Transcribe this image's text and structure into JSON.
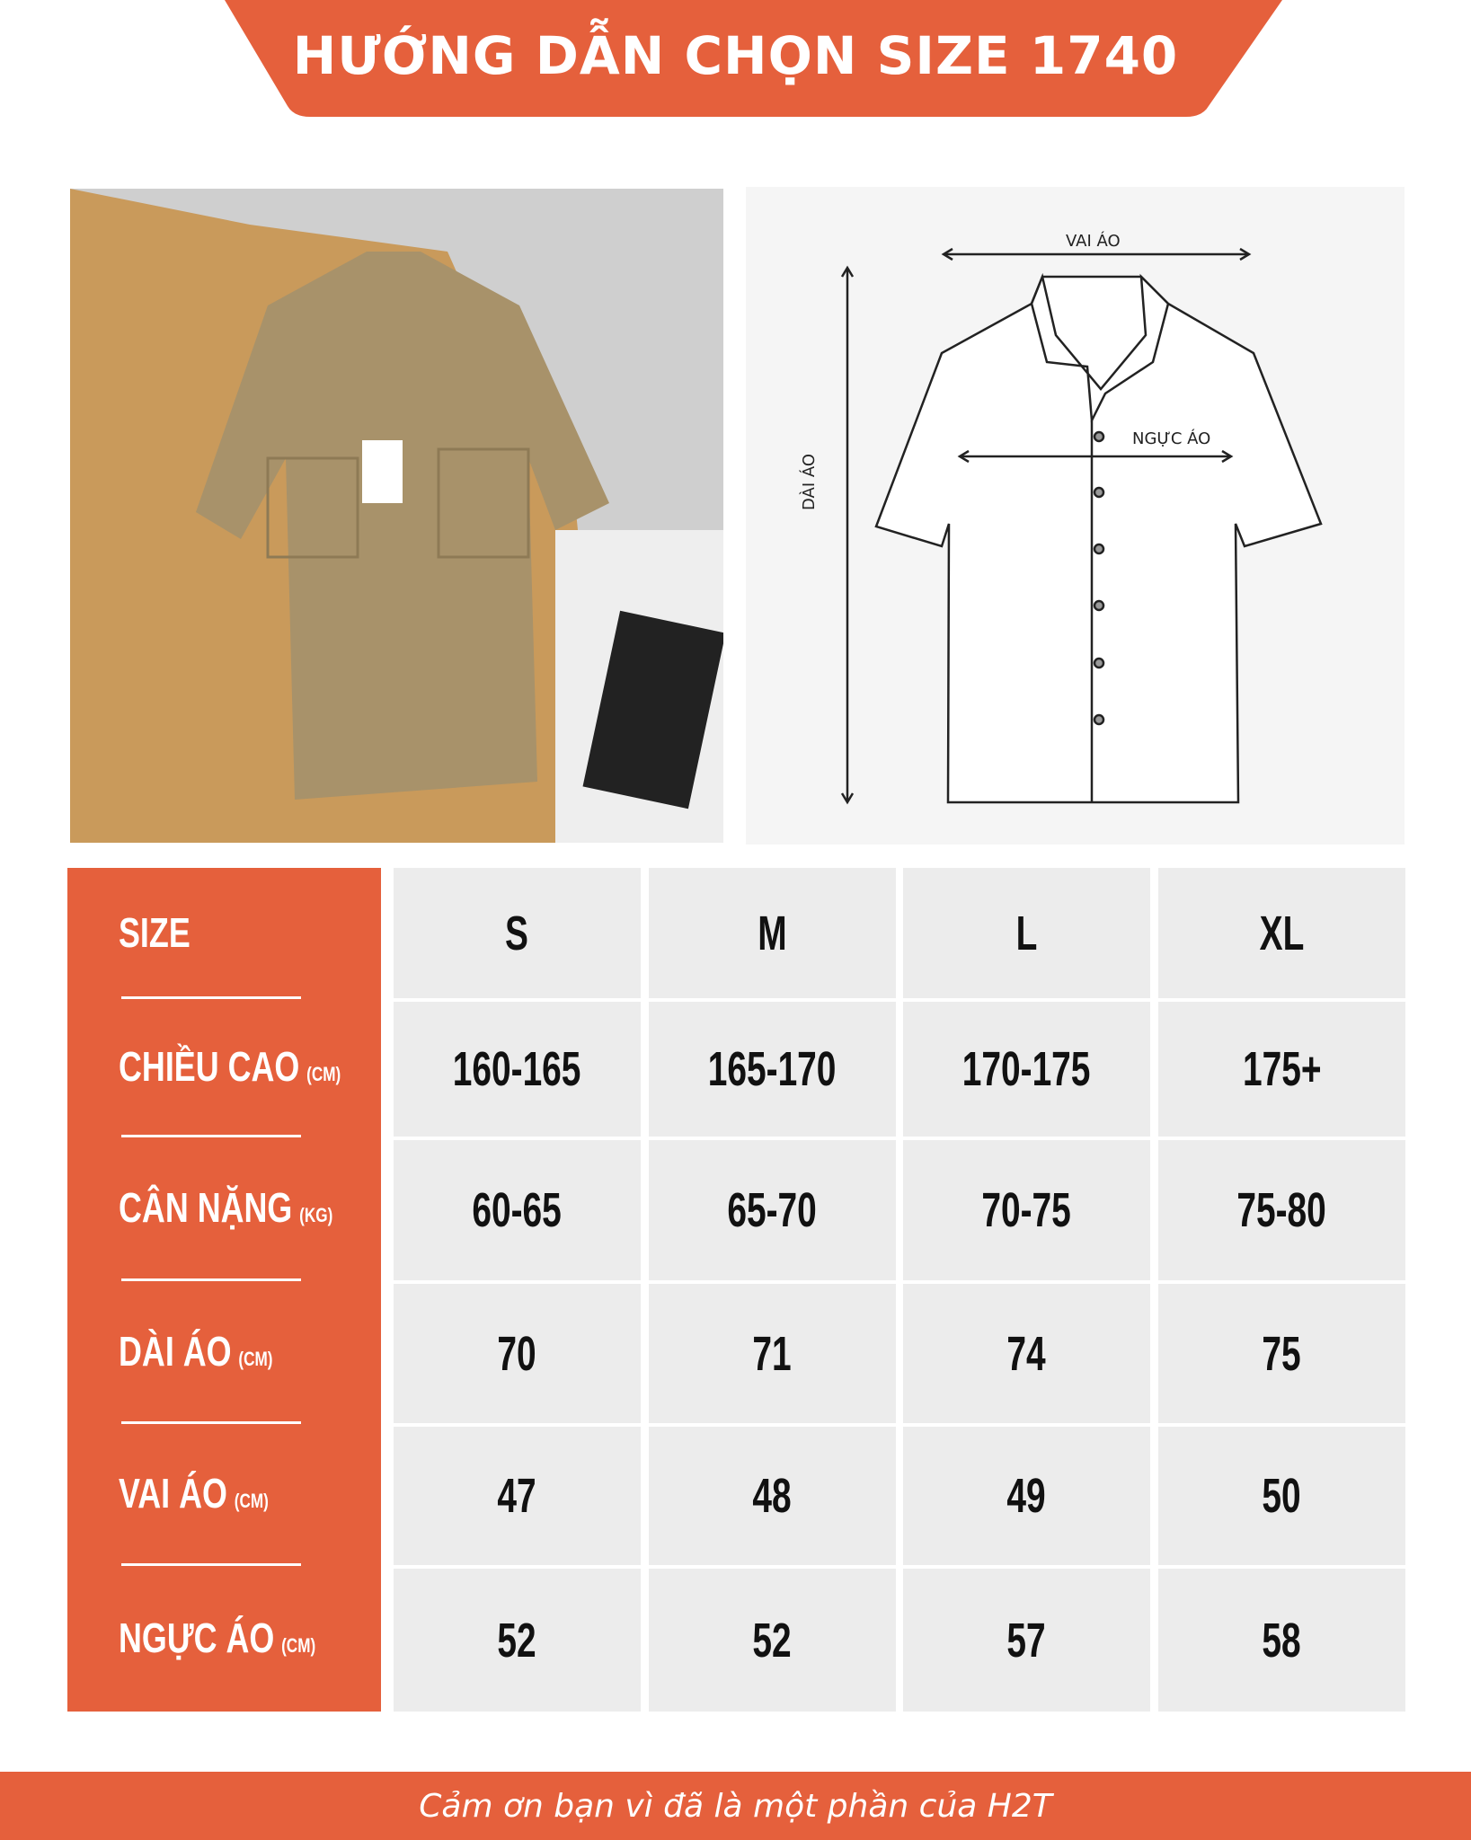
{
  "header": {
    "title": "HƯỚNG DẪN CHỌN SIZE 1740"
  },
  "colors": {
    "accent": "#e5603c",
    "cell_bg": "#ececec"
  },
  "diagram": {
    "shoulder_label": "VAI ÁO",
    "chest_label": "NGỰC ÁO",
    "length_label": "DÀI ÁO"
  },
  "table": {
    "rows": [
      {
        "label": "SIZE",
        "unit": "",
        "values": [
          "S",
          "M",
          "L",
          "XL"
        ]
      },
      {
        "label": "CHIỀU CAO",
        "unit": "(CM)",
        "values": [
          "160-165",
          "165-170",
          "170-175",
          "175+"
        ]
      },
      {
        "label": "CÂN NẶNG",
        "unit": "(KG)",
        "values": [
          "60-65",
          "65-70",
          "70-75",
          "75-80"
        ]
      },
      {
        "label": "DÀI ÁO",
        "unit": "(CM)",
        "values": [
          "70",
          "71",
          "74",
          "75"
        ]
      },
      {
        "label": "VAI ÁO",
        "unit": "(CM)",
        "values": [
          "47",
          "48",
          "49",
          "50"
        ]
      },
      {
        "label": "NGỰC ÁO",
        "unit": "(CM)",
        "values": [
          "52",
          "52",
          "57",
          "58"
        ]
      }
    ]
  },
  "footer": {
    "text": "Cảm ơn bạn vì đã là một phần của H2T"
  }
}
